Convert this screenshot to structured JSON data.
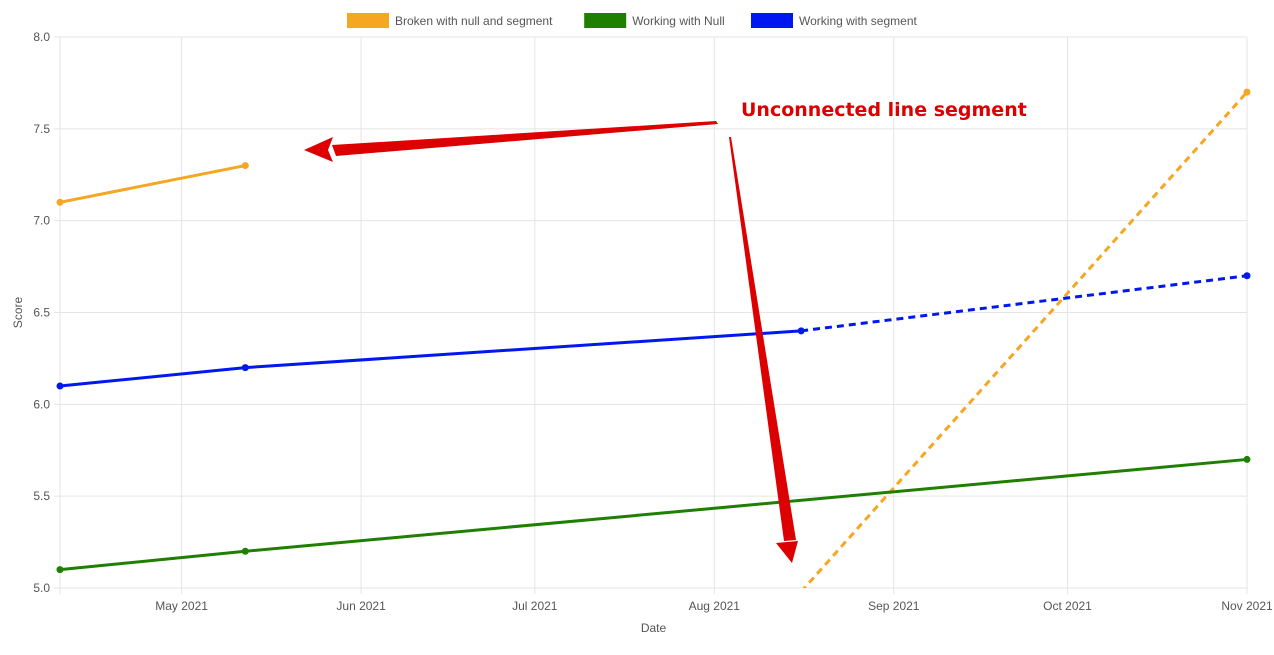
{
  "chart_data": {
    "type": "line",
    "xlabel": "Date",
    "ylabel": "Score",
    "xlim": [
      "2021-04-10",
      "2021-11-01"
    ],
    "ylim": [
      5.0,
      8.0
    ],
    "y_ticks": [
      5.0,
      5.5,
      6.0,
      6.5,
      7.0,
      7.5,
      8.0
    ],
    "x_ticks": [
      {
        "date": "2021-05-01",
        "label": "May 2021"
      },
      {
        "date": "2021-06-01",
        "label": "Jun 2021"
      },
      {
        "date": "2021-07-01",
        "label": "Jul 2021"
      },
      {
        "date": "2021-08-01",
        "label": "Aug 2021"
      },
      {
        "date": "2021-09-01",
        "label": "Sep 2021"
      },
      {
        "date": "2021-10-01",
        "label": "Oct 2021"
      },
      {
        "date": "2021-11-01",
        "label": "Nov 2021"
      }
    ],
    "grid": true,
    "legend_position": "top",
    "series": [
      {
        "name": "Broken with null and segment",
        "color": "#f5a623",
        "points": [
          {
            "x": "2021-04-10",
            "y": 7.1
          },
          {
            "x": "2021-05-12",
            "y": 7.3
          },
          {
            "x": "2021-08-16",
            "y": null
          },
          {
            "x": "2021-11-01",
            "y": 7.7
          }
        ],
        "dashed_segments_from_index": 2
      },
      {
        "name": "Working with Null",
        "color": "#1e7f00",
        "points": [
          {
            "x": "2021-04-10",
            "y": 5.1
          },
          {
            "x": "2021-05-12",
            "y": 5.2
          },
          {
            "x": "2021-11-01",
            "y": 5.7
          }
        ],
        "dashed_segments_from_index": null
      },
      {
        "name": "Working with segment",
        "color": "#0018f0",
        "points": [
          {
            "x": "2021-04-10",
            "y": 6.1
          },
          {
            "x": "2021-05-12",
            "y": 6.2
          },
          {
            "x": "2021-08-16",
            "y": 6.4
          },
          {
            "x": "2021-11-01",
            "y": 6.7
          }
        ],
        "dashed_segments_from_index": 2
      }
    ],
    "annotation": {
      "text": "Unconnected line segment",
      "color": "#dd0000"
    }
  }
}
